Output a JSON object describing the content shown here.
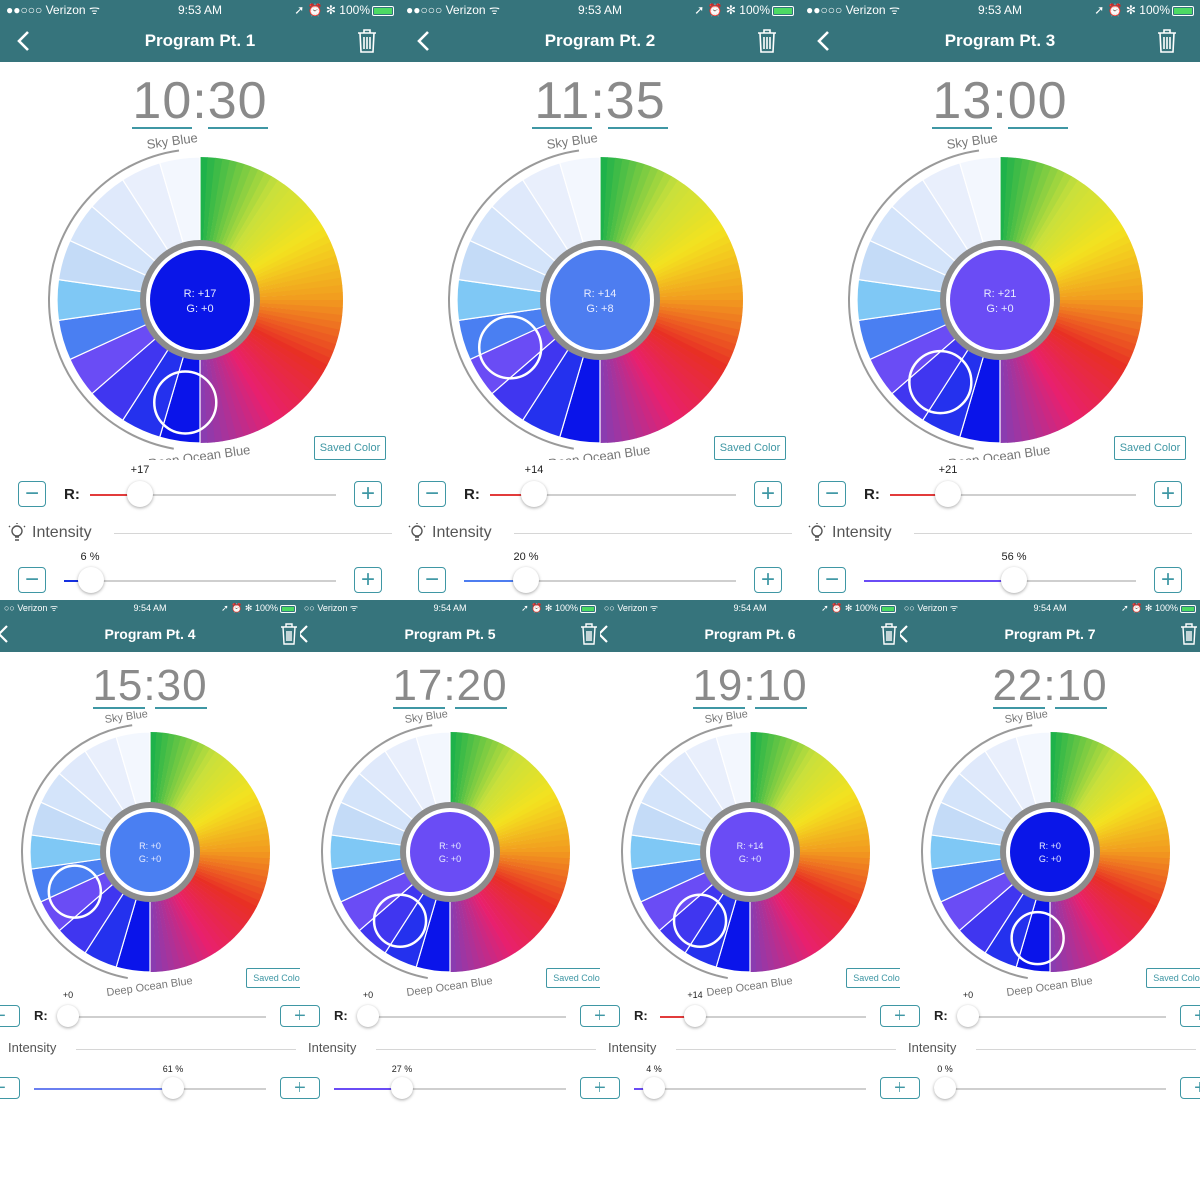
{
  "status_bar": {
    "carrier": "Verizon",
    "battery": "100%"
  },
  "labels": {
    "sky_blue": "Sky Blue",
    "deep_ocean_blue": "Deep Ocean Blue",
    "saved_color": "Saved Color",
    "r_label": "R:",
    "intensity": "Intensity",
    "minus": "−",
    "plus": "+"
  },
  "colors": {
    "header": "#36747c",
    "accent": "#3f97a4",
    "red_fill": "#e23b3b",
    "intensity_fill": "#6a5cf0"
  },
  "icons": {
    "back": "chevron-left-icon",
    "trash": "trash-icon",
    "bulb": "lightbulb-icon"
  },
  "panels": [
    {
      "status_time": "9:53 AM",
      "title": "Program Pt. 1",
      "time": "10:30",
      "center_r": "R: +17",
      "center_g": "G: +0",
      "center_color": "#0a16e8",
      "r_value": "+17",
      "r": 17,
      "intensity_value": "6 %",
      "intensity": 6
    },
    {
      "status_time": "9:53 AM",
      "title": "Program Pt. 2",
      "time": "11:35",
      "center_r": "R: +14",
      "center_g": "G: +8",
      "center_color": "#4d7df0",
      "r_value": "+14",
      "r": 14,
      "intensity_value": "20 %",
      "intensity": 20
    },
    {
      "status_time": "9:53 AM",
      "title": "Program Pt. 3",
      "time": "13:00",
      "center_r": "R: +21",
      "center_g": "G: +0",
      "center_color": "#6a4cf5",
      "r_value": "+21",
      "r": 21,
      "intensity_value": "56 %",
      "intensity": 56
    },
    {
      "status_time": "9:54 AM",
      "title": "Program Pt. 4",
      "time": "15:30",
      "center_r": "R: +0",
      "center_g": "G: +0",
      "center_color": "#4a7ff2",
      "r_value": "+0",
      "r": 0,
      "intensity_value": "61 %",
      "intensity": 61
    },
    {
      "status_time": "9:54 AM",
      "title": "Program Pt. 5",
      "time": "17:20",
      "center_r": "R: +0",
      "center_g": "G: +0",
      "center_color": "#6a4cf5",
      "r_value": "+0",
      "r": 0,
      "intensity_value": "27 %",
      "intensity": 27
    },
    {
      "status_time": "9:54 AM",
      "title": "Program Pt. 6",
      "time": "19:10",
      "center_r": "R: +14",
      "center_g": "G: +0",
      "center_color": "#6a4cf5",
      "r_value": "+14",
      "r": 14,
      "intensity_value": "4 %",
      "intensity": 4
    },
    {
      "status_time": "9:54 AM",
      "title": "Program Pt. 7",
      "time": "22:10",
      "center_r": "R: +0",
      "center_g": "G: +0",
      "center_color": "#0a16e8",
      "r_value": "+0",
      "r": 0,
      "intensity_value": "0 %",
      "intensity": 0
    }
  ]
}
